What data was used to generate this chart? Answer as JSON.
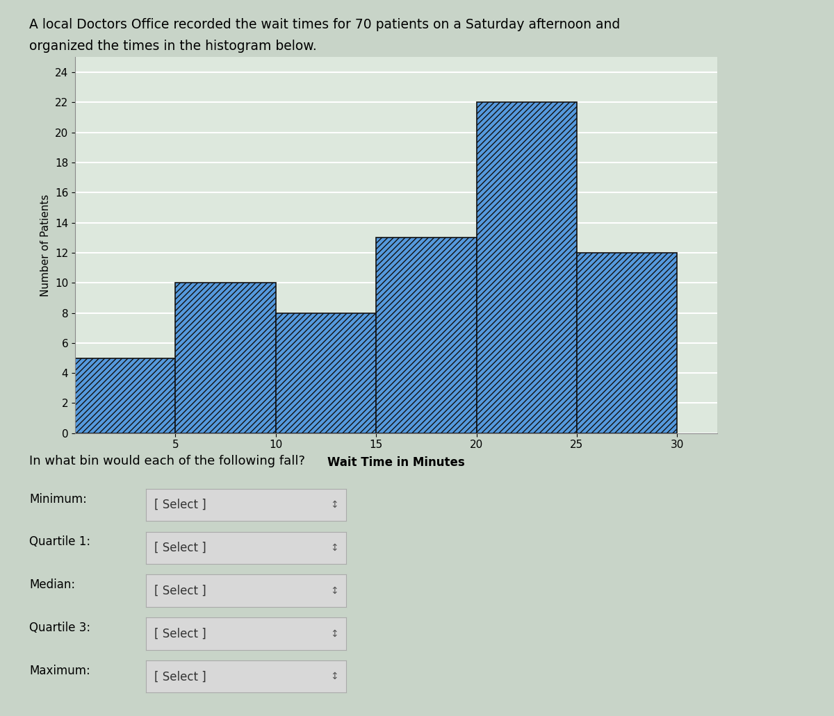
{
  "title_line1": "A local Doctors Office recorded the wait times for 70 patients on a Saturday afternoon and",
  "title_line2": "organized the times in the histogram below.",
  "title_fontsize": 13.5,
  "bins_left": [
    0,
    5,
    10,
    15,
    20,
    25
  ],
  "bin_width": 5,
  "bar_heights": [
    5,
    10,
    8,
    13,
    22,
    12
  ],
  "bar_color": "#5599dd",
  "bar_edge_color": "#111111",
  "bar_edge_width": 1.2,
  "xlabel": "Wait Time in Minutes",
  "ylabel": "Number of Patients",
  "xlabel_fontsize": 12,
  "ylabel_fontsize": 11,
  "xticks": [
    5,
    10,
    15,
    20,
    25,
    30
  ],
  "yticks": [
    0,
    2,
    4,
    6,
    8,
    10,
    12,
    14,
    16,
    18,
    20,
    22,
    24
  ],
  "ylim": [
    0,
    25
  ],
  "xlim": [
    0,
    32
  ],
  "tick_fontsize": 11,
  "plot_bg_color": "#dde8dd",
  "grid_color": "#ffffff",
  "question_text": "In what bin would each of the following fall?",
  "question_fontsize": 13,
  "dropdown_labels": [
    "Minimum:",
    "Quartile 1:",
    "Median:",
    "Quartile 3:",
    "Maximum:"
  ],
  "dropdown_text": "[ Select ]",
  "dropdown_fontsize": 12,
  "label_fontsize": 12,
  "fig_bg_color": "#c8d4c8",
  "bottom_bg_color": "#c8d4c8"
}
